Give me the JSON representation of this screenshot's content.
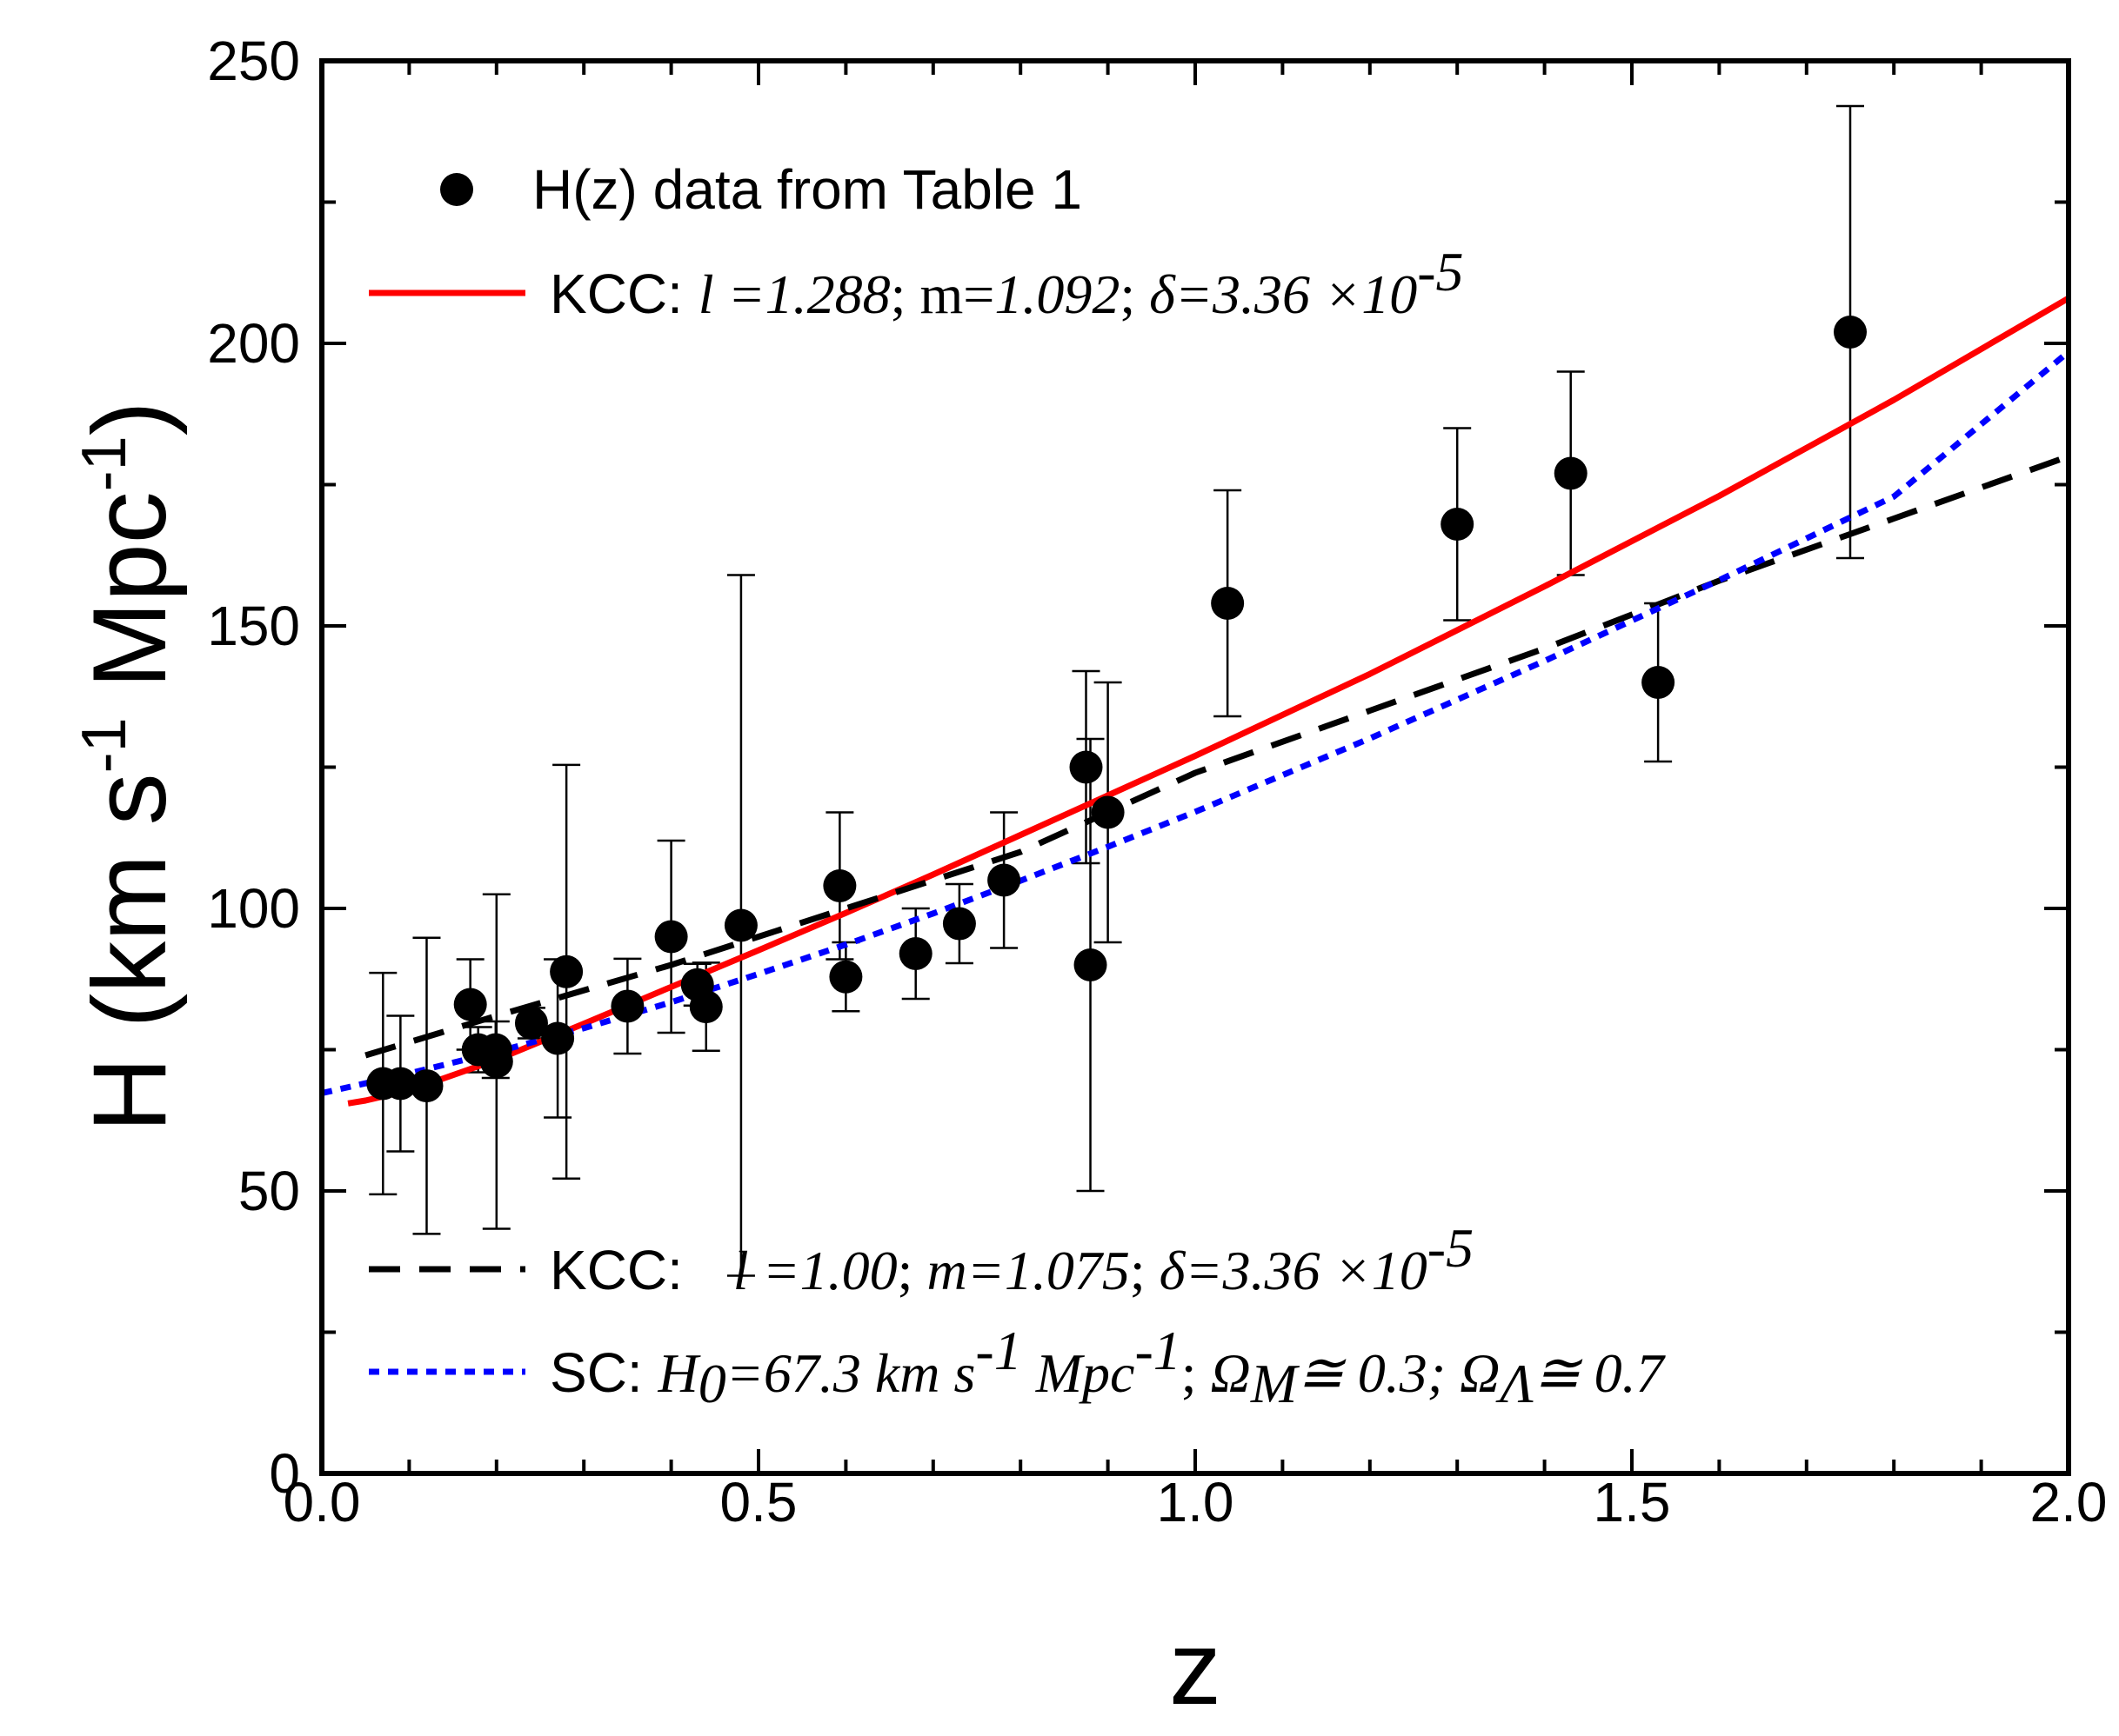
{
  "chart_data": {
    "type": "scatter",
    "xlabel": "z",
    "ylabel": "H (km s-1 Mpc-1)",
    "ylabel_parts": {
      "main": "H (km s",
      "exp1": "-1",
      "mid": " Mpc",
      "exp2": "-1",
      "close": ")"
    },
    "xlim": [
      0.0,
      2.0
    ],
    "ylim": [
      0,
      250
    ],
    "xticks": [
      0.0,
      0.5,
      1.0,
      1.5,
      2.0
    ],
    "xtick_labels": [
      "0.0",
      "0.5",
      "1.0",
      "1.5",
      "2.0"
    ],
    "yticks": [
      0,
      50,
      100,
      150,
      200,
      250
    ],
    "ytick_labels": [
      "0",
      "50",
      "100",
      "150",
      "200",
      "250"
    ],
    "grid": false,
    "data_points": {
      "name": "H(z) data from Table 1",
      "z": [
        0.07,
        0.09,
        0.12,
        0.17,
        0.179,
        0.199,
        0.2,
        0.24,
        0.27,
        0.28,
        0.35,
        0.4,
        0.43,
        0.44,
        0.48,
        0.593,
        0.6,
        0.68,
        0.73,
        0.781,
        0.875,
        0.88,
        0.9,
        1.037,
        1.3,
        1.43,
        1.53,
        1.75
      ],
      "H": [
        69,
        69,
        68.6,
        83,
        75,
        75,
        72.9,
        79.7,
        77,
        88.8,
        82.7,
        95,
        86.5,
        82.6,
        97,
        104,
        87.9,
        92,
        97.3,
        105,
        125,
        90,
        117,
        154,
        168,
        177,
        140,
        202
      ],
      "err": [
        19.6,
        12,
        26.2,
        8,
        4,
        5,
        29.6,
        2.7,
        14,
        36.6,
        8.4,
        17,
        3.7,
        7.8,
        62,
        13,
        6.1,
        8,
        7,
        12,
        17,
        40,
        23,
        20,
        17,
        18,
        14,
        40
      ]
    },
    "series": [
      {
        "name": "KCC red",
        "color": "#ff0000",
        "style": "solid",
        "x": [
          0.03,
          0.05,
          0.1,
          0.2,
          0.3,
          0.4,
          0.5,
          0.6,
          0.7,
          0.8,
          0.9,
          1.0,
          1.2,
          1.4,
          1.6,
          1.8,
          2.0
        ],
        "y": [
          65.5,
          66,
          67.8,
          73.2,
          79.6,
          86.1,
          92.6,
          99.2,
          106,
          113,
          120,
          127,
          141.5,
          157,
          173,
          190,
          208
        ]
      },
      {
        "name": "KCC black dashed",
        "color": "#000000",
        "style": "dashed",
        "x": [
          0.05,
          0.2,
          0.4,
          0.6,
          0.8,
          1.0,
          1.2,
          1.4,
          1.6,
          1.8,
          2.0
        ],
        "y": [
          74,
          81,
          90,
          100,
          110,
          124,
          135,
          146,
          158,
          169,
          180
        ]
      },
      {
        "name": "SC blue dotted",
        "color": "#0000ff",
        "style": "dotted",
        "x": [
          0.0,
          0.1,
          0.2,
          0.3,
          0.4,
          0.5,
          0.6,
          0.7,
          0.8,
          0.9,
          1.0,
          1.2,
          1.4,
          1.6,
          1.8,
          2.0
        ],
        "y": [
          67.3,
          70.8,
          74.6,
          78.8,
          83.4,
          88.4,
          93.6,
          99.1,
          104.9,
          110.9,
          117.1,
          130.1,
          143.8,
          158.1,
          172.9,
          198.5
        ]
      }
    ]
  },
  "legend": {
    "data_label": "H(z) data from Table 1",
    "kcc_red": {
      "prefix": "KCC: ",
      "l_label": "l",
      "l_val": " =1.288",
      "sep1": "; m=",
      "m_val": "1.092",
      "sep2": "; ",
      "delta": "δ",
      "delta_val": "=3.36 ×10",
      "exp": "-5"
    },
    "kcc_black": {
      "prefix": "KCC:  ",
      "l_label": "l",
      "l_val": " =1.00",
      "sep1": "; ",
      "m_val": "m=1.075",
      "sep2": "; ",
      "delta": "δ",
      "delta_val": "=3.36 ×10",
      "exp": "-5"
    },
    "sc_blue": {
      "prefix": "SC: ",
      "h0": "H",
      "h0_sub": "0",
      "h0_val": "=67.3 km s",
      "exp1": "-1",
      "mpc": " Mpc",
      "exp2": "-1",
      "sep": "; ",
      "om": "Ω",
      "om_sub": "M",
      "om_val": "≅ 0.3; ",
      "ol": "Ω",
      "ol_sub": "Λ",
      "ol_val": "≅ 0.7"
    }
  },
  "colors": {
    "red": "#ff0000",
    "black": "#000000",
    "blue": "#0000ff"
  }
}
